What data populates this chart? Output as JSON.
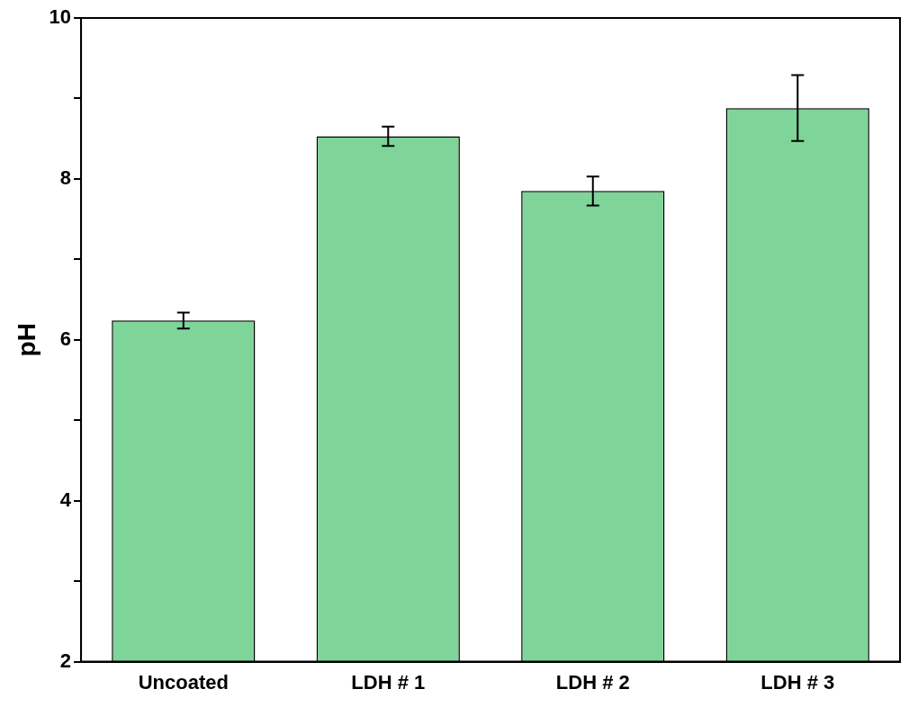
{
  "chart_data": {
    "type": "bar",
    "ylabel": "pH",
    "categories": [
      "Uncoated",
      "LDH # 1",
      "LDH # 2",
      "LDH # 3"
    ],
    "values": [
      6.24,
      8.53,
      7.85,
      8.88
    ],
    "errors": [
      0.1,
      0.12,
      0.18,
      0.41
    ],
    "color": "#7fd49a",
    "ylim": [
      2,
      10
    ],
    "yticks": [
      2,
      {
        "value": 3,
        "label": null
      },
      4,
      {
        "value": 5,
        "label": null
      },
      6,
      {
        "value": 7,
        "label": null
      },
      8,
      {
        "value": 9,
        "label": null
      },
      10
    ],
    "grid": false,
    "legend": false
  }
}
